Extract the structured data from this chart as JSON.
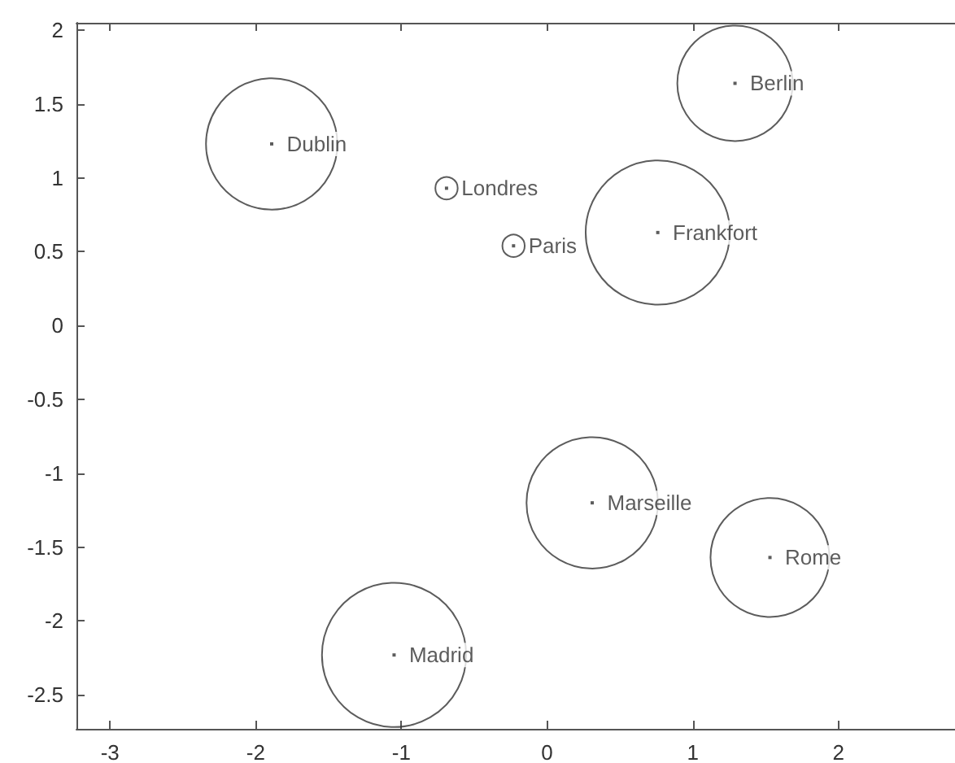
{
  "chart_data": {
    "type": "bubble",
    "x": [
      -1.89,
      -0.69,
      -0.23,
      1.29,
      0.76,
      0.31,
      1.53,
      -1.05
    ],
    "values": [
      1.23,
      0.93,
      0.54,
      1.64,
      0.63,
      -1.2,
      -1.57,
      -2.23
    ],
    "sizes": [
      0.83,
      0.024,
      0.024,
      0.64,
      1,
      0.83,
      0.68,
      1
    ],
    "color": "#333333",
    "annotations": [
      {
        "text": "Dublin",
        "x": -1.89,
        "y": 1.23
      },
      {
        "text": "Londres",
        "x": -0.69,
        "y": 0.93
      },
      {
        "text": "Paris",
        "x": -0.23,
        "y": 0.54
      },
      {
        "text": "Berlin",
        "x": 1.29,
        "y": 1.64
      },
      {
        "text": "Frankfort",
        "x": 0.76,
        "y": 0.63
      },
      {
        "text": "Marseille",
        "x": 0.31,
        "y": -1.2
      },
      {
        "text": "Rome",
        "x": 1.53,
        "y": -1.57
      },
      {
        "text": "Madrid",
        "x": -1.05,
        "y": -2.23
      }
    ],
    "xlim": [
      -3.23,
      2.8
    ],
    "xticks": [
      -3,
      -2,
      -1,
      0,
      1,
      2
    ],
    "ylim": [
      -2.73,
      2.05
    ],
    "yticks": [
      -2.5,
      -2,
      -1.5,
      -1,
      -0.5,
      0,
      0.5,
      1,
      1.5,
      2
    ],
    "grid": false
  }
}
